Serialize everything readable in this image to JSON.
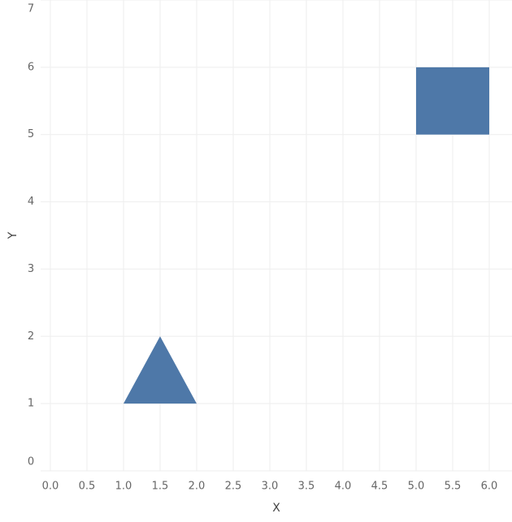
{
  "chart_data": {
    "type": "polygon",
    "x_label": "X",
    "y_label": "Y",
    "shapes": [
      {
        "x": [
          1,
          2,
          1.5
        ],
        "y": [
          1,
          1,
          2
        ]
      },
      {
        "x": [
          5,
          6,
          6,
          5
        ],
        "y": [
          5,
          5,
          6,
          6
        ]
      }
    ],
    "color": "#4e78a8",
    "xlim": [
      -0.133,
      6.311
    ],
    "ylim": [
      0,
      7
    ],
    "xticks": [
      {
        "value": 0,
        "label": "0.0"
      },
      0.5,
      {
        "value": 1,
        "label": "1.0"
      },
      1.5,
      {
        "value": 2,
        "label": "2.0"
      },
      2.5,
      {
        "value": 3,
        "label": "3.0"
      },
      3.5,
      {
        "value": 4,
        "label": "4.0"
      },
      4.5,
      {
        "value": 5,
        "label": "5.0"
      },
      5.5,
      {
        "value": 6,
        "label": "6.0"
      }
    ],
    "yticks": [
      0,
      1,
      2,
      3,
      4,
      5,
      6,
      7
    ],
    "grid": true
  }
}
